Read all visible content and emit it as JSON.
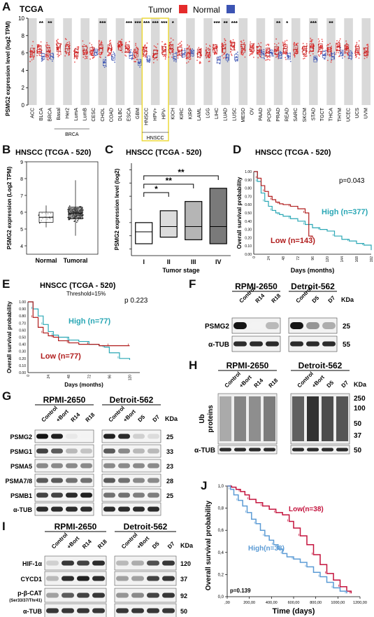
{
  "panel_letters": [
    "A",
    "B",
    "C",
    "D",
    "E",
    "F",
    "G",
    "H",
    "I",
    "J"
  ],
  "colors": {
    "tumor": "#e52b2b",
    "normal": "#3c54b3",
    "high": "#2aa7b5",
    "low": "#b01c1c",
    "j_high": "#5b9bd5",
    "j_low": "#c4123c",
    "stage_fill": [
      "#ffffff",
      "#dcdcdc",
      "#b5b5b5",
      "#7a7a7a"
    ],
    "hnscc_box": "#ecd93a"
  },
  "chart_data": [
    {
      "panel": "A",
      "type": "box",
      "title": "TCGA",
      "legend": [
        {
          "label": "Tumor",
          "color": "#e52b2b"
        },
        {
          "label": "Normal",
          "color": "#3c54b3"
        }
      ],
      "ylabel": "PSMG2 expression level (log2 TPM)",
      "ylim": [
        0,
        10
      ],
      "yticks": [
        0,
        2,
        4,
        6,
        8,
        10
      ],
      "categories": [
        "ACC",
        "BLCA",
        "BRCA",
        "BRCA.Basal",
        "BRCA.Her2",
        "BRCA.LumA",
        "BRCA.LumB",
        "CESC",
        "CHOL",
        "COAD",
        "DLBC",
        "ESCA",
        "GBM",
        "HNSCC",
        "HNSCC.HPV+",
        "HNSCC.HPV-",
        "KICH",
        "KIRC",
        "KIRP",
        "LAML",
        "LGG",
        "LIHC",
        "LUAD",
        "LUSC",
        "MESO",
        "OV",
        "PAAD",
        "PCPG",
        "PRAD",
        "READ",
        "SARC",
        "SKCM",
        "STAD",
        "TGCT",
        "THCA",
        "THYM",
        "UCEC",
        "UCS",
        "UVM"
      ],
      "tick_labels": [
        "ACC",
        "BLCA",
        "BRCA",
        "Basal",
        "Her2",
        "LumA",
        "LumB",
        "CESC",
        "CHOL",
        "COAD",
        "DLBC",
        "ESCA",
        "GBM",
        "HNSCC",
        "HPV+",
        "HPV-",
        "KICH",
        "KIRC",
        "KIRP",
        "LAML",
        "LGG",
        "LIHC",
        "LUAD",
        "LUSC",
        "MESO",
        "OV",
        "PAAD",
        "PCPG",
        "PRAD",
        "READ",
        "SARC",
        "SKCM",
        "STAD",
        "TGCT",
        "THCA",
        "THYM",
        "UCEC",
        "UCS",
        "UVM"
      ],
      "tumor_median": [
        6.1,
        6.4,
        6.2,
        6.6,
        6.5,
        6.0,
        6.3,
        6.2,
        6.5,
        6.5,
        6.8,
        6.5,
        6.0,
        6.2,
        5.9,
        6.3,
        6.5,
        6.2,
        6.0,
        6.0,
        6.0,
        6.5,
        6.5,
        6.8,
        6.5,
        6.6,
        6.3,
        6.1,
        6.3,
        6.5,
        6.4,
        6.3,
        6.6,
        6.6,
        6.2,
        6.7,
        6.5,
        6.3,
        6.1
      ],
      "normal_median": [
        null,
        5.6,
        5.6,
        null,
        null,
        null,
        null,
        6.1,
        4.9,
        5.5,
        null,
        5.7,
        4.9,
        5.3,
        null,
        null,
        5.6,
        5.9,
        6.0,
        null,
        null,
        5.2,
        5.5,
        5.5,
        null,
        null,
        5.8,
        6.0,
        5.7,
        5.6,
        null,
        null,
        5.3,
        5.8,
        5.6,
        6.0,
        5.7,
        null,
        null
      ],
      "significance": [
        "",
        "**",
        "**",
        "",
        "",
        "",
        "",
        "",
        "***",
        "",
        "",
        "***",
        "***",
        "***",
        "***",
        "***",
        "*",
        "",
        "",
        "",
        "",
        "***",
        "**",
        "***",
        "",
        "",
        "",
        "",
        "**",
        "*",
        "",
        "",
        "***",
        "",
        "**",
        "",
        "",
        "",
        ""
      ],
      "group_labels": [
        {
          "label": "BRCA",
          "from": "BRCA.Basal",
          "to": "BRCA.LumB"
        },
        {
          "label": "HNSCC",
          "from": "HNSCC",
          "to": "HNSCC.HPV-"
        }
      ],
      "highlight": "HNSCC"
    },
    {
      "panel": "B",
      "type": "box",
      "title": "HNSCC (TCGA - 520)",
      "ylabel": "PSMG2 expression (Log2 TPM)",
      "ylim": [
        3.5,
        9.0
      ],
      "yticks": [
        4,
        5,
        6,
        7,
        8,
        9
      ],
      "categories": [
        "Normal",
        "Tumoral"
      ],
      "median": [
        5.7,
        5.95
      ],
      "q1": [
        5.4,
        5.6
      ],
      "q3": [
        6.0,
        6.3
      ],
      "min": [
        5.1,
        4.6
      ],
      "max": [
        6.4,
        7.9
      ]
    },
    {
      "panel": "C",
      "type": "box",
      "title": "HNSCC (TCGA - 520)",
      "ylabel": "PSMG2 expression level (log2)",
      "xlabel": "Tumor stage",
      "ylim": [
        3.5,
        10.5
      ],
      "yticks": [
        4,
        5,
        6,
        7,
        8,
        9,
        10
      ],
      "categories": [
        "I",
        "II",
        "III",
        "IV"
      ],
      "median": [
        5.3,
        5.7,
        5.7,
        5.7
      ],
      "q1": [
        4.4,
        4.9,
        4.7,
        4.4
      ],
      "q3": [
        6.0,
        6.9,
        7.6,
        8.6
      ],
      "significance": [
        {
          "from": "I",
          "to": "II",
          "label": "*"
        },
        {
          "from": "I",
          "to": "III",
          "label": "**"
        },
        {
          "from": "I",
          "to": "IV",
          "label": "**"
        }
      ]
    },
    {
      "panel": "D",
      "type": "line",
      "title": "HNSCC (TCGA - 520)",
      "ylabel": "Overall survival probability",
      "xlabel": "Days (months)",
      "ylim": [
        0,
        1.0
      ],
      "yticks": [
        0,
        0.1,
        0.2,
        0.3,
        0.4,
        0.5,
        0.6,
        0.7,
        0.8,
        0.9,
        1.0
      ],
      "xlim": [
        0,
        192
      ],
      "xticks": [
        0,
        24,
        48,
        72,
        96,
        120,
        144,
        168,
        192
      ],
      "pvalue": "p=0.043",
      "series": [
        {
          "name": "High (n=377)",
          "x": [
            0,
            6,
            12,
            18,
            24,
            30,
            36,
            42,
            48,
            60,
            72,
            84,
            96,
            108,
            120,
            132,
            144,
            156,
            168,
            180,
            192
          ],
          "y": [
            1.0,
            0.88,
            0.74,
            0.64,
            0.58,
            0.53,
            0.5,
            0.48,
            0.46,
            0.43,
            0.4,
            0.36,
            0.32,
            0.3,
            0.28,
            0.22,
            0.18,
            0.16,
            0.13,
            0.11,
            0.05
          ]
        },
        {
          "name": "Low (n=143)",
          "x": [
            0,
            6,
            12,
            18,
            24,
            30,
            36,
            42,
            48,
            60,
            72,
            84,
            90,
            96
          ],
          "y": [
            1.0,
            0.92,
            0.83,
            0.76,
            0.7,
            0.66,
            0.63,
            0.61,
            0.6,
            0.58,
            0.55,
            0.5,
            0.22,
            0.2
          ]
        }
      ]
    },
    {
      "panel": "E",
      "type": "line",
      "title": "HNSCC (TCGA - 520)",
      "subtitle": "Threshold=15%",
      "ylabel": "Overall survival probability",
      "xlabel": "Days (months)",
      "ylim": [
        0,
        1.0
      ],
      "yticks": [
        0,
        0.1,
        0.2,
        0.3,
        0.4,
        0.5,
        0.6,
        0.7,
        0.8,
        0.9,
        1.0
      ],
      "xlim": [
        0,
        132
      ],
      "xticks": [
        0,
        24,
        48,
        72,
        96,
        120
      ],
      "pvalue": "p 0.223",
      "series": [
        {
          "name": "High (n=77)",
          "x": [
            0,
            6,
            12,
            18,
            24,
            30,
            36,
            48,
            60,
            72,
            84,
            90,
            96,
            108,
            120
          ],
          "y": [
            1.0,
            0.9,
            0.8,
            0.68,
            0.58,
            0.53,
            0.5,
            0.46,
            0.44,
            0.4,
            0.38,
            0.36,
            0.28,
            0.2,
            0.18
          ]
        },
        {
          "name": "Low (n=77)",
          "x": [
            0,
            6,
            12,
            18,
            24,
            30,
            36,
            48,
            60,
            72,
            84,
            96,
            108,
            120
          ],
          "y": [
            1.0,
            0.78,
            0.64,
            0.56,
            0.52,
            0.5,
            0.45,
            0.42,
            0.4,
            0.4,
            0.38,
            0.38,
            0.38,
            0.38
          ]
        }
      ]
    },
    {
      "panel": "J",
      "type": "line",
      "ylabel": "Overall survival probability",
      "xlabel": "Time (days)",
      "ylim": [
        0,
        1.0
      ],
      "ytick_labels": [
        "0,0",
        "0,2",
        "0,4",
        "0,6",
        "0,8",
        "1,0"
      ],
      "xlim": [
        0,
        1200
      ],
      "xtick_labels": [
        ",00",
        "200,00",
        "400,00",
        "600,00",
        "800,00",
        "1000,00",
        "1200,00"
      ],
      "pvalue": "p=0.139",
      "series": [
        {
          "name": "Low(n=38)",
          "x": [
            0,
            40,
            80,
            120,
            160,
            200,
            260,
            320,
            380,
            440,
            500,
            560,
            600,
            660,
            720,
            780,
            840,
            900,
            960,
            1020,
            1080,
            1120
          ],
          "y": [
            1.0,
            0.99,
            0.97,
            0.95,
            0.92,
            0.88,
            0.85,
            0.82,
            0.79,
            0.76,
            0.74,
            0.68,
            0.62,
            0.55,
            0.47,
            0.38,
            0.29,
            0.21,
            0.15,
            0.09,
            0.05,
            0.03
          ]
        },
        {
          "name": "High(n=38)",
          "x": [
            0,
            30,
            60,
            100,
            140,
            180,
            220,
            260,
            300,
            340,
            380,
            420,
            460,
            500,
            540,
            600,
            660,
            720,
            780,
            840,
            900,
            960,
            1020,
            1080
          ],
          "y": [
            1.0,
            0.97,
            0.92,
            0.87,
            0.82,
            0.76,
            0.7,
            0.66,
            0.6,
            0.55,
            0.51,
            0.47,
            0.43,
            0.39,
            0.36,
            0.34,
            0.31,
            0.27,
            0.22,
            0.18,
            0.13,
            0.08,
            0.05,
            0.03
          ]
        }
      ]
    }
  ],
  "blots": {
    "F": {
      "groups": [
        "RPMI-2650",
        "Detroit-562"
      ],
      "lanes": [
        [
          "Control",
          "R14",
          "R18"
        ],
        [
          "Control",
          "D5",
          "D7"
        ]
      ],
      "kda_label": "KDa",
      "rows": [
        {
          "name": "PSMG2",
          "kda": "25",
          "intensity": [
            1.0,
            0.05,
            0.3,
            1.0,
            0.45,
            0.35
          ]
        },
        {
          "name": "α-TUB",
          "kda": "55",
          "intensity": [
            0.9,
            0.9,
            0.9,
            0.9,
            0.9,
            0.9
          ]
        }
      ]
    },
    "G": {
      "groups": [
        "RPMI-2650",
        "Detroit-562"
      ],
      "lanes": [
        [
          "Control",
          "+Bort",
          "R14",
          "R18"
        ],
        [
          "Control",
          "+Bort",
          "D5",
          "D7"
        ]
      ],
      "kda_label": "KDa",
      "rows": [
        {
          "name": "PSMG2",
          "kda": "25",
          "intensity": [
            1.0,
            0.95,
            0.1,
            0.05,
            0.95,
            0.9,
            0.2,
            0.15
          ]
        },
        {
          "name": "PSMG1",
          "kda": "33",
          "intensity": [
            0.8,
            0.7,
            0.3,
            0.25,
            0.7,
            0.5,
            0.3,
            0.3
          ]
        },
        {
          "name": "PSMA5",
          "kda": "23",
          "intensity": [
            0.5,
            0.5,
            0.5,
            0.5,
            0.5,
            0.5,
            0.5,
            0.5
          ]
        },
        {
          "name": "PSMA7/8",
          "kda": "28",
          "intensity": [
            0.7,
            0.7,
            0.6,
            0.6,
            0.7,
            0.6,
            0.5,
            0.5
          ]
        },
        {
          "name": "PSMB1",
          "kda": "25",
          "intensity": [
            0.8,
            0.8,
            0.9,
            0.95,
            0.6,
            0.6,
            0.55,
            0.55
          ]
        },
        {
          "name": "α-TUB",
          "kda": "",
          "intensity": [
            0.9,
            0.9,
            0.9,
            0.9,
            0.9,
            0.9,
            0.9,
            0.9
          ]
        }
      ]
    },
    "H": {
      "groups": [
        "RPMI-2650",
        "Detroit-562"
      ],
      "lanes": [
        [
          "Control",
          "+Bort",
          "R14",
          "R18"
        ],
        [
          "Control",
          "+Bort",
          "D5",
          "D7"
        ]
      ],
      "kda_label": "KDa",
      "ub_label": [
        "Ub",
        "proteins"
      ],
      "ub_markers": [
        "250",
        "100",
        "50",
        "37"
      ],
      "ub_intensity": [
        0.35,
        0.55,
        0.5,
        0.6,
        0.75,
        1.0,
        0.85,
        0.8
      ],
      "tub_label": "α-TUB",
      "tub_kda": "50"
    },
    "I": {
      "groups": [
        "RPMI-2650",
        "Detroit-562"
      ],
      "lanes": [
        [
          "Control",
          "+Bort",
          "R14",
          "R18"
        ],
        [
          "Control",
          "+Bort",
          "D5",
          "D7"
        ]
      ],
      "kda_label": "KDa",
      "rows": [
        {
          "name": "HIF-1α",
          "kda": "120",
          "intensity": [
            0.2,
            0.85,
            0.8,
            0.9,
            0.3,
            0.35,
            0.75,
            0.85
          ]
        },
        {
          "name": "CYCD1",
          "kda": "37",
          "intensity": [
            0.3,
            0.9,
            0.95,
            0.9,
            0.4,
            0.4,
            0.8,
            0.85
          ]
        },
        {
          "name": "p-β-CAT",
          "sub": "(Ser33/37/Thr41)",
          "kda": "92",
          "intensity": [
            0.4,
            0.7,
            0.8,
            0.85,
            0.45,
            0.5,
            0.8,
            0.85
          ]
        },
        {
          "name": "α-TUB",
          "kda": "50",
          "intensity": [
            0.85,
            0.85,
            0.85,
            0.85,
            0.85,
            0.85,
            0.85,
            0.85
          ]
        }
      ]
    }
  }
}
